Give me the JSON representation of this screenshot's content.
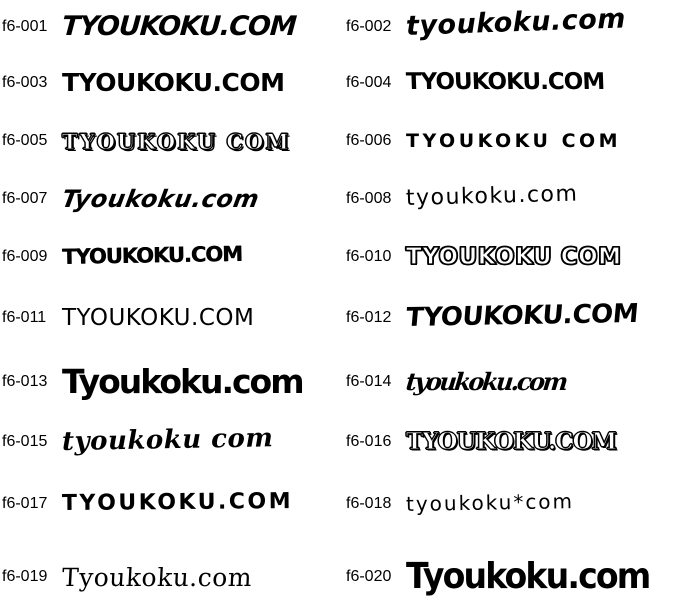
{
  "page": {
    "background_color": "#ffffff",
    "ink_color": "#000000",
    "description": "Graffiti font specimen sheet, 20 numbered font samples in two columns"
  },
  "entries": [
    {
      "id": "f6-001",
      "sample": "TYOUKOKU.COM"
    },
    {
      "id": "f6-002",
      "sample": "tyoukoku.com"
    },
    {
      "id": "f6-003",
      "sample": "TYOUKOKU.COM"
    },
    {
      "id": "f6-004",
      "sample": "TYOUKOKU.COM"
    },
    {
      "id": "f6-005",
      "sample": "TYOUKOKU COM"
    },
    {
      "id": "f6-006",
      "sample": "TYOUKOKU COM"
    },
    {
      "id": "f6-007",
      "sample": "Tyoukoku.com"
    },
    {
      "id": "f6-008",
      "sample": "tyoukoku.com"
    },
    {
      "id": "f6-009",
      "sample": "TYOUKOKU.COM"
    },
    {
      "id": "f6-010",
      "sample": "TYOUKOKU COM"
    },
    {
      "id": "f6-011",
      "sample": "TYOUKOKU.COM"
    },
    {
      "id": "f6-012",
      "sample": "TYOUKOKU.COM"
    },
    {
      "id": "f6-013",
      "sample": "Tyoukoku.com"
    },
    {
      "id": "f6-014",
      "sample": "tyoukoku.com"
    },
    {
      "id": "f6-015",
      "sample": "tyoukoku com"
    },
    {
      "id": "f6-016",
      "sample": "TYOUKOKU.COM"
    },
    {
      "id": "f6-017",
      "sample": "TYOUKOKU.COM"
    },
    {
      "id": "f6-018",
      "sample": "tyoukoku*com"
    },
    {
      "id": "f6-019",
      "sample": "Tyoukoku.com"
    },
    {
      "id": "f6-020",
      "sample": "Tyoukoku.com"
    }
  ]
}
